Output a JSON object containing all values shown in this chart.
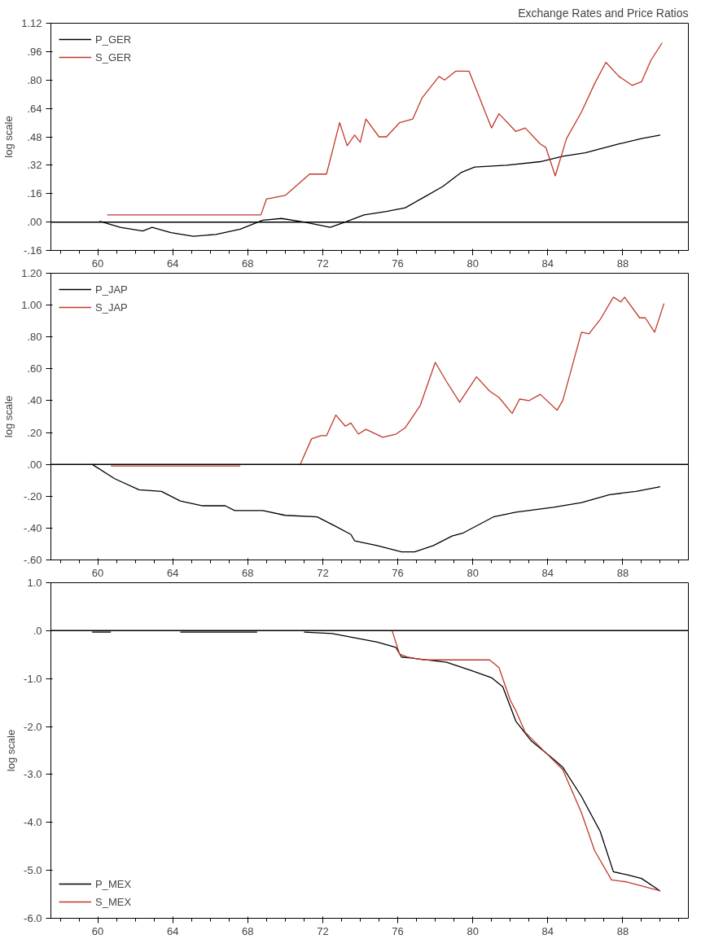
{
  "chart_data": [
    {
      "type": "line",
      "title": "Exchange Rates and Price Ratios",
      "ylabel": "log scale",
      "legend": "top left",
      "grid": false,
      "xlim": [
        57.5,
        91.5
      ],
      "xticks": [
        60,
        64,
        68,
        72,
        76,
        80,
        84,
        88
      ],
      "ylim": [
        -0.16,
        1.12
      ],
      "yticks": [
        {
          "value": -0.16,
          "label": "-.16"
        },
        {
          "value": 0,
          "label": ".00"
        },
        {
          "value": 0.16,
          "label": ".16"
        },
        {
          "value": 0.32,
          "label": ".32"
        },
        {
          "value": 0.48,
          "label": ".48"
        },
        {
          "value": 0.64,
          "label": ".64"
        },
        {
          "value": 0.8,
          "label": ".80"
        },
        {
          "value": 0.96,
          "label": ".96"
        },
        1.12
      ],
      "ref_lines": [
        {
          "axis": "y",
          "value": 0,
          "color": "#000000"
        }
      ],
      "series": [
        {
          "name": "P_GER",
          "color": "#000000",
          "x": [
            60.1,
            61.2,
            62.4,
            62.9,
            63.9,
            65.1,
            66.3,
            67.6,
            68.8,
            69.8,
            71.0,
            72.4,
            73.2,
            74.2,
            75.4,
            76.4,
            77.4,
            78.4,
            79.4,
            80.1,
            81.8,
            83.6,
            84.8,
            86.0,
            87.8,
            89.0,
            90.0
          ],
          "values": [
            0.005,
            -0.03,
            -0.05,
            -0.03,
            -0.06,
            -0.08,
            -0.07,
            -0.04,
            0.01,
            0.02,
            0.0,
            -0.03,
            0.0,
            0.04,
            0.06,
            0.08,
            0.14,
            0.2,
            0.28,
            0.31,
            0.32,
            0.34,
            0.37,
            0.39,
            0.44,
            0.47,
            0.49
          ]
        },
        {
          "name": "S_GER",
          "color": "#c0392b",
          "x": [
            60.5,
            68.7,
            69.0,
            70.0,
            71.3,
            72.2,
            72.9,
            73.3,
            73.7,
            74.0,
            74.3,
            75.0,
            75.4,
            76.1,
            76.8,
            77.3,
            78.2,
            78.5,
            79.1,
            79.8,
            80.7,
            81.0,
            81.4,
            82.3,
            82.8,
            83.6,
            83.9,
            84.4,
            85.0,
            85.8,
            86.5,
            87.1,
            87.8,
            88.5,
            89.0,
            89.5,
            90.1
          ],
          "values": [
            0.04,
            0.04,
            0.13,
            0.15,
            0.27,
            0.27,
            0.56,
            0.43,
            0.49,
            0.45,
            0.58,
            0.48,
            0.48,
            0.56,
            0.58,
            0.7,
            0.82,
            0.8,
            0.85,
            0.85,
            0.61,
            0.53,
            0.61,
            0.51,
            0.53,
            0.44,
            0.42,
            0.26,
            0.47,
            0.62,
            0.78,
            0.9,
            0.82,
            0.77,
            0.79,
            0.91,
            1.01
          ]
        }
      ]
    },
    {
      "type": "line",
      "ylabel": "log scale",
      "legend": "top left",
      "grid": false,
      "xlim": [
        57.5,
        91.5
      ],
      "xticks": [
        60,
        64,
        68,
        72,
        76,
        80,
        84,
        88
      ],
      "ylim": [
        -0.6,
        1.2
      ],
      "yticks": [
        {
          "value": -0.6,
          "label": "-.60"
        },
        {
          "value": -0.4,
          "label": "-.40"
        },
        {
          "value": -0.2,
          "label": "-.20"
        },
        {
          "value": 0,
          "label": ".00"
        },
        {
          "value": 0.2,
          "label": ".20"
        },
        {
          "value": 0.4,
          "label": ".40"
        },
        {
          "value": 0.6,
          "label": ".60"
        },
        {
          "value": 0.8,
          "label": ".80"
        },
        {
          "value": 1.0,
          "label": "1.00"
        },
        {
          "value": 1.2,
          "label": "1.20"
        }
      ],
      "ref_lines": [
        {
          "axis": "y",
          "value": 0,
          "color": "#000000"
        }
      ],
      "series": [
        {
          "name": "P_JAP",
          "color": "#000000",
          "x": [
            59.7,
            60.9,
            62.2,
            63.4,
            64.4,
            65.6,
            66.8,
            67.3,
            68.8,
            70.0,
            71.7,
            72.7,
            73.5,
            73.7,
            74.9,
            76.2,
            76.9,
            77.9,
            78.9,
            79.5,
            81.1,
            82.3,
            84.3,
            85.8,
            87.3,
            88.7,
            90.0
          ],
          "values": [
            0.0,
            -0.09,
            -0.16,
            -0.17,
            -0.23,
            -0.26,
            -0.26,
            -0.29,
            -0.29,
            -0.32,
            -0.33,
            -0.39,
            -0.44,
            -0.48,
            -0.51,
            -0.55,
            -0.55,
            -0.51,
            -0.45,
            -0.43,
            -0.33,
            -0.3,
            -0.27,
            -0.24,
            -0.19,
            -0.17,
            -0.14
          ]
        },
        {
          "name": "S_JAP",
          "color": "#c0392b",
          "x": [
            60.7,
            67.6,
            69.0,
            70.8,
            71.4,
            71.9,
            72.2,
            72.7,
            73.2,
            73.5,
            73.9,
            74.3,
            75.2,
            75.9,
            76.4,
            77.2,
            78.0,
            78.6,
            79.3,
            80.2,
            80.9,
            81.4,
            82.1,
            82.5,
            83.0,
            83.6,
            84.5,
            84.8,
            85.8,
            86.2,
            86.8,
            87.5,
            87.9,
            88.1,
            88.9,
            89.2,
            89.7,
            90.2
          ],
          "values": [
            -0.01,
            -0.01,
            null,
            0.0,
            0.16,
            0.18,
            0.18,
            0.31,
            0.24,
            0.26,
            0.19,
            0.22,
            0.17,
            0.19,
            0.23,
            0.37,
            0.64,
            0.52,
            0.39,
            0.55,
            0.46,
            0.42,
            0.32,
            0.41,
            0.4,
            0.44,
            0.34,
            0.4,
            0.83,
            0.82,
            0.91,
            1.05,
            1.02,
            1.05,
            0.92,
            0.92,
            0.83,
            1.01
          ]
        }
      ]
    },
    {
      "type": "line",
      "ylabel": "log scale",
      "legend": "bottom left",
      "grid": false,
      "xlim": [
        57.5,
        91.5
      ],
      "xticks": [
        60,
        64,
        68,
        72,
        76,
        80,
        84,
        88
      ],
      "ylim": [
        -6.0,
        1.0
      ],
      "yticks": [
        {
          "value": -6,
          "label": "-6.0"
        },
        {
          "value": -5,
          "label": "-5.0"
        },
        {
          "value": -4,
          "label": "-4.0"
        },
        {
          "value": -3,
          "label": "-3.0"
        },
        {
          "value": -2,
          "label": "-2.0"
        },
        {
          "value": -1,
          "label": "-1.0"
        },
        {
          "value": 0,
          "label": ".0"
        },
        {
          "value": 1,
          "label": "1.0"
        }
      ],
      "ref_lines": [
        {
          "axis": "y",
          "value": 0,
          "color": "#000000"
        }
      ],
      "series": [
        {
          "name": "P_MEX",
          "color": "#000000",
          "x": [
            59.7,
            60.7,
            62.0,
            64.4,
            68.5,
            70.0,
            71.0,
            72.5,
            74.9,
            75.9,
            76.2,
            76.7,
            78.6,
            79.9,
            81.0,
            81.6,
            82.3,
            83.1,
            84.3,
            84.8,
            85.8,
            86.8,
            87.5,
            88.2,
            89.0,
            90.0
          ],
          "values": [
            -0.03,
            -0.03,
            null,
            -0.03,
            -0.03,
            null,
            -0.03,
            -0.06,
            -0.24,
            -0.35,
            -0.55,
            -0.57,
            -0.66,
            -0.83,
            -0.98,
            -1.17,
            -1.89,
            -2.29,
            -2.68,
            -2.85,
            -3.46,
            -4.19,
            -5.03,
            -5.09,
            -5.17,
            -5.43
          ]
        },
        {
          "name": "S_MEX",
          "color": "#c0392b",
          "x": [
            75.7,
            76.1,
            76.5,
            77.4,
            78.6,
            79.9,
            80.9,
            81.4,
            82.0,
            82.3,
            82.8,
            83.8,
            84.8,
            85.8,
            86.5,
            87.4,
            88.2,
            90.0
          ],
          "values": [
            0.0,
            -0.49,
            -0.55,
            -0.61,
            -0.61,
            -0.61,
            -0.61,
            -0.77,
            -1.45,
            -1.67,
            -2.12,
            -2.51,
            -2.9,
            -3.8,
            -4.59,
            -5.2,
            -5.24,
            -5.43
          ]
        }
      ]
    }
  ]
}
